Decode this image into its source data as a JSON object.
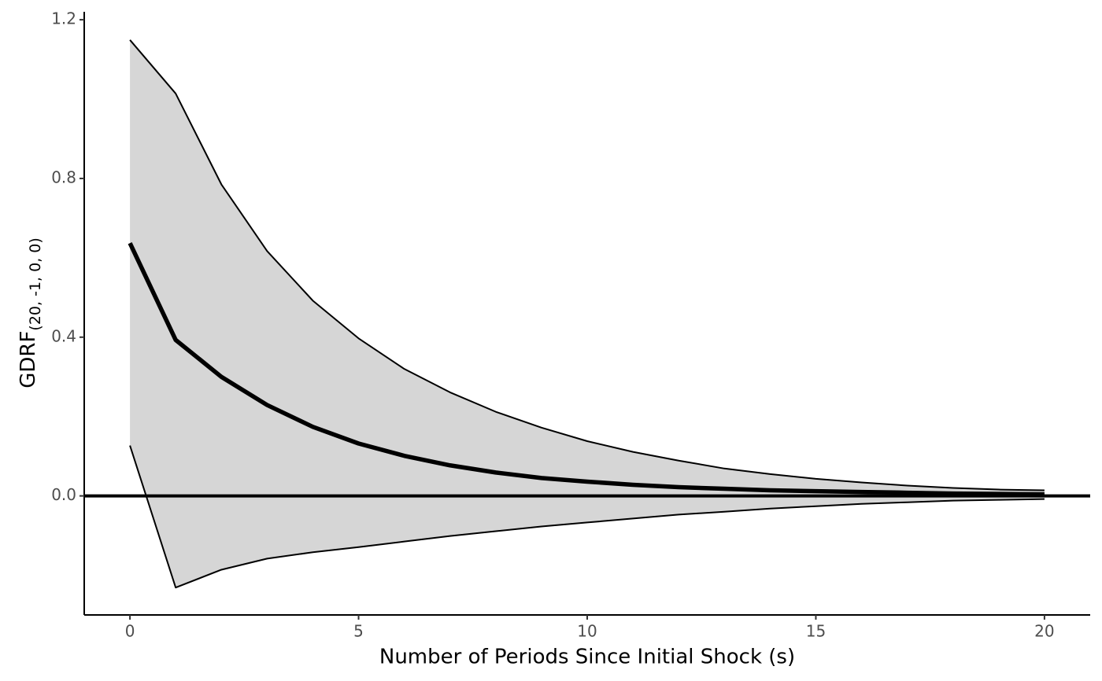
{
  "chart_data": {
    "type": "band-line",
    "x_label": "Number of Periods Since Initial Shock (s)",
    "y_label": "GDRF",
    "y_label_subscript": "(20, -1, 0, 0)",
    "x": [
      0,
      1,
      2,
      3,
      4,
      5,
      6,
      7,
      8,
      9,
      10,
      11,
      12,
      13,
      14,
      15,
      16,
      17,
      18,
      19,
      20
    ],
    "line": [
      0.637,
      0.393,
      0.3,
      0.229,
      0.174,
      0.132,
      0.101,
      0.077,
      0.059,
      0.045,
      0.036,
      0.028,
      0.022,
      0.018,
      0.014,
      0.012,
      0.01,
      0.008,
      0.006,
      0.005,
      0.004
    ],
    "upper": [
      1.149,
      1.014,
      0.785,
      0.617,
      0.492,
      0.397,
      0.32,
      0.261,
      0.212,
      0.172,
      0.138,
      0.111,
      0.089,
      0.069,
      0.055,
      0.043,
      0.034,
      0.026,
      0.02,
      0.016,
      0.014
    ],
    "lower": [
      0.127,
      -0.231,
      -0.186,
      -0.158,
      -0.142,
      -0.129,
      -0.115,
      -0.101,
      -0.089,
      -0.077,
      -0.067,
      -0.057,
      -0.047,
      -0.04,
      -0.032,
      -0.026,
      -0.02,
      -0.016,
      -0.012,
      -0.01,
      -0.008
    ],
    "hline": 0,
    "line_color": "#000000",
    "band_color": "#d6d6d6",
    "xlim": [
      -1,
      21
    ],
    "ylim": [
      -0.3,
      1.22
    ],
    "xticks": [
      0,
      5,
      10,
      15,
      20
    ],
    "yticks": [
      {
        "value": 0,
        "label": "0.0"
      },
      0.4,
      0.8,
      1.2
    ]
  }
}
